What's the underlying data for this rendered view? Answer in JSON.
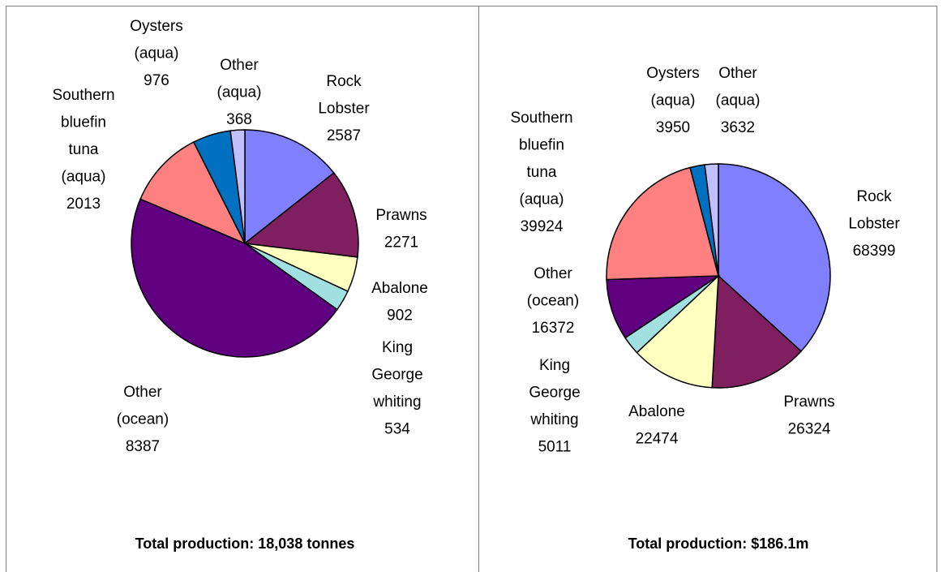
{
  "chart_data": [
    {
      "type": "pie",
      "title": "Total production:  18,038 tonnes",
      "categories": [
        "Rock Lobster",
        "Prawns",
        "Abalone",
        "King George whiting",
        "Other (ocean)",
        "Southern bluefin tuna (aqua)",
        "Oysters (aqua)",
        "Other (aqua)"
      ],
      "values": [
        2587,
        2271,
        902,
        534,
        8387,
        2013,
        976,
        368
      ],
      "colors": [
        "#8080ff",
        "#7f1f5f",
        "#ffffc0",
        "#a0e0e0",
        "#600080",
        "#ff8080",
        "#0070c0",
        "#c0c0ff"
      ]
    },
    {
      "type": "pie",
      "title": "Total production:  $186.1m",
      "categories": [
        "Rock Lobster",
        "Prawns",
        "Abalone",
        "King George whiting",
        "Other (ocean)",
        "Southern bluefin tuna (aqua)",
        "Oysters (aqua)",
        "Other (aqua)"
      ],
      "values": [
        68399,
        26324,
        22474,
        5011,
        16372,
        39924,
        3950,
        3632
      ],
      "colors": [
        "#8080ff",
        "#7f1f5f",
        "#ffffc0",
        "#a0e0e0",
        "#600080",
        "#ff8080",
        "#0070c0",
        "#c0c0ff"
      ]
    }
  ]
}
